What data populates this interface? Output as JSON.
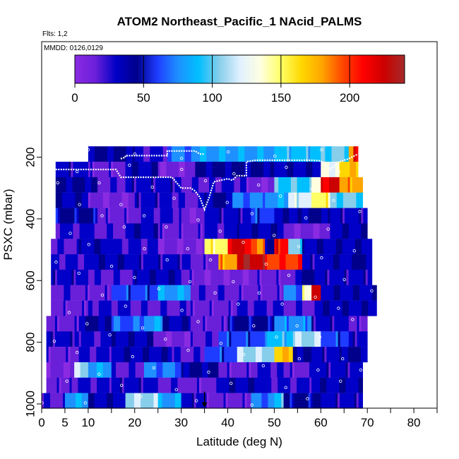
{
  "chart_data": {
    "type": "heatmap",
    "title": "ATOM2 Northeast_Pacific_1 NAcid_PALMS",
    "flights_label": "Flts: 1,2",
    "dates_label": "MMDD: 0126,0129",
    "xlabel": "Latitude (deg N)",
    "ylabel": "PSXC (mbar)",
    "xlim": [
      0,
      85
    ],
    "ylim": [
      1000,
      130
    ],
    "y_reversed": true,
    "x_ticks": [
      0,
      5,
      10,
      20,
      30,
      40,
      50,
      60,
      70,
      80
    ],
    "x_minor_ticks": [
      15,
      25,
      35,
      45,
      55,
      65,
      75,
      85
    ],
    "y_ticks": [
      200,
      400,
      600,
      800,
      1000
    ],
    "grid": false,
    "colorbar": {
      "range": [
        0,
        240
      ],
      "ticks": [
        0,
        50,
        100,
        150,
        200
      ],
      "colors": [
        "#8a2be2",
        "#6a1fd8",
        "#0000c8",
        "#00008b",
        "#1e3cff",
        "#1e90ff",
        "#00bfff",
        "#87ceeb",
        "#e0f0ff",
        "#ffffe0",
        "#ffff66",
        "#ffd700",
        "#ffa500",
        "#ff4500",
        "#ff0000",
        "#cc0000",
        "#a52a2a"
      ],
      "placement": "top-inside"
    },
    "bands": [
      {
        "p": 190,
        "xmin": 10,
        "xmax": 68,
        "segs": [
          [
            10,
            20,
            40
          ],
          [
            20,
            27,
            25
          ],
          [
            27,
            34,
            70
          ],
          [
            34,
            50,
            80
          ],
          [
            50,
            60,
            90
          ],
          [
            60,
            66,
            100
          ],
          [
            66,
            67,
            180
          ],
          [
            67,
            68,
            220
          ]
        ]
      },
      {
        "p": 240,
        "xmin": 3,
        "xmax": 68,
        "segs": [
          [
            3,
            10,
            30
          ],
          [
            10,
            18,
            15
          ],
          [
            18,
            25,
            35
          ],
          [
            25,
            33,
            10
          ],
          [
            33,
            50,
            40
          ],
          [
            50,
            60,
            35
          ],
          [
            60,
            64,
            130
          ],
          [
            64,
            68,
            170
          ]
        ]
      },
      {
        "p": 290,
        "xmin": 3,
        "xmax": 69,
        "segs": [
          [
            3,
            12,
            40
          ],
          [
            12,
            18,
            20
          ],
          [
            18,
            30,
            30
          ],
          [
            30,
            36,
            20
          ],
          [
            36,
            44,
            25
          ],
          [
            44,
            50,
            10
          ],
          [
            50,
            58,
            95
          ],
          [
            58,
            60,
            135
          ],
          [
            60,
            64,
            220
          ],
          [
            64,
            69,
            180
          ]
        ]
      },
      {
        "p": 340,
        "xmin": 3,
        "xmax": 69,
        "segs": [
          [
            3,
            10,
            35
          ],
          [
            10,
            20,
            10
          ],
          [
            20,
            28,
            30
          ],
          [
            28,
            35,
            20
          ],
          [
            35,
            41,
            40
          ],
          [
            41,
            48,
            70
          ],
          [
            48,
            53,
            80
          ],
          [
            53,
            58,
            120
          ],
          [
            58,
            62,
            150
          ],
          [
            62,
            69,
            100
          ]
        ]
      },
      {
        "p": 390,
        "xmin": 3,
        "xmax": 70,
        "segs": [
          [
            3,
            12,
            45
          ],
          [
            12,
            20,
            15
          ],
          [
            20,
            30,
            25
          ],
          [
            30,
            35,
            10
          ],
          [
            35,
            45,
            30
          ],
          [
            45,
            50,
            60
          ],
          [
            50,
            55,
            35
          ],
          [
            55,
            62,
            40
          ],
          [
            62,
            70,
            30
          ]
        ]
      },
      {
        "p": 440,
        "xmin": 3,
        "xmax": 70,
        "segs": [
          [
            3,
            10,
            25
          ],
          [
            10,
            18,
            20
          ],
          [
            18,
            25,
            35
          ],
          [
            25,
            35,
            15
          ],
          [
            35,
            42,
            25
          ],
          [
            42,
            52,
            35
          ],
          [
            52,
            62,
            10
          ],
          [
            62,
            70,
            35
          ]
        ]
      },
      {
        "p": 490,
        "xmin": 2,
        "xmax": 71,
        "segs": [
          [
            2,
            8,
            20
          ],
          [
            8,
            15,
            35
          ],
          [
            15,
            25,
            25
          ],
          [
            25,
            35,
            10
          ],
          [
            35,
            40,
            150
          ],
          [
            40,
            45,
            220
          ],
          [
            45,
            48,
            190
          ],
          [
            48,
            50,
            40
          ],
          [
            50,
            53,
            210
          ],
          [
            53,
            56,
            100
          ],
          [
            56,
            71,
            35
          ]
        ]
      },
      {
        "p": 540,
        "xmin": 2,
        "xmax": 71,
        "segs": [
          [
            2,
            10,
            25
          ],
          [
            10,
            20,
            35
          ],
          [
            20,
            32,
            30
          ],
          [
            32,
            38,
            15
          ],
          [
            38,
            42,
            180
          ],
          [
            42,
            48,
            230
          ],
          [
            48,
            56,
            200
          ],
          [
            56,
            60,
            30
          ],
          [
            60,
            68,
            35
          ],
          [
            68,
            71,
            40
          ]
        ]
      },
      {
        "p": 590,
        "xmin": 2,
        "xmax": 71,
        "segs": [
          [
            2,
            10,
            30
          ],
          [
            10,
            20,
            20
          ],
          [
            20,
            30,
            35
          ],
          [
            30,
            35,
            15
          ],
          [
            35,
            45,
            10
          ],
          [
            45,
            55,
            15
          ],
          [
            55,
            60,
            40
          ],
          [
            60,
            71,
            30
          ]
        ]
      },
      {
        "p": 640,
        "xmin": 2,
        "xmax": 72,
        "segs": [
          [
            2,
            8,
            20
          ],
          [
            8,
            15,
            15
          ],
          [
            15,
            25,
            60
          ],
          [
            25,
            32,
            80
          ],
          [
            32,
            42,
            20
          ],
          [
            42,
            52,
            15
          ],
          [
            52,
            56,
            70
          ],
          [
            56,
            58,
            140
          ],
          [
            58,
            60,
            220
          ],
          [
            60,
            72,
            35
          ]
        ]
      },
      {
        "p": 690,
        "xmin": 2,
        "xmax": 72,
        "segs": [
          [
            2,
            10,
            15
          ],
          [
            10,
            20,
            25
          ],
          [
            20,
            32,
            20
          ],
          [
            32,
            42,
            15
          ],
          [
            42,
            52,
            25
          ],
          [
            52,
            60,
            20
          ],
          [
            60,
            72,
            35
          ]
        ]
      },
      {
        "p": 740,
        "xmin": 1,
        "xmax": 70,
        "segs": [
          [
            1,
            8,
            15
          ],
          [
            8,
            15,
            40
          ],
          [
            15,
            22,
            65
          ],
          [
            22,
            26,
            80
          ],
          [
            26,
            32,
            35
          ],
          [
            32,
            40,
            15
          ],
          [
            40,
            50,
            45
          ],
          [
            50,
            58,
            75
          ],
          [
            58,
            66,
            30
          ],
          [
            66,
            70,
            15
          ]
        ]
      },
      {
        "p": 790,
        "xmin": 1,
        "xmax": 70,
        "segs": [
          [
            1,
            8,
            30
          ],
          [
            8,
            15,
            25
          ],
          [
            15,
            24,
            35
          ],
          [
            24,
            32,
            10
          ],
          [
            32,
            38,
            20
          ],
          [
            38,
            48,
            60
          ],
          [
            48,
            54,
            90
          ],
          [
            54,
            60,
            110
          ],
          [
            60,
            66,
            60
          ],
          [
            66,
            70,
            30
          ]
        ]
      },
      {
        "p": 840,
        "xmin": 1,
        "xmax": 70,
        "segs": [
          [
            1,
            8,
            15
          ],
          [
            8,
            15,
            25
          ],
          [
            15,
            28,
            35
          ],
          [
            28,
            35,
            20
          ],
          [
            35,
            42,
            60
          ],
          [
            42,
            50,
            110
          ],
          [
            50,
            54,
            170
          ],
          [
            54,
            58,
            40
          ],
          [
            58,
            64,
            30
          ],
          [
            64,
            70,
            40
          ]
        ]
      },
      {
        "p": 890,
        "xmin": 1,
        "xmax": 69,
        "segs": [
          [
            1,
            7,
            10
          ],
          [
            7,
            10,
            110
          ],
          [
            10,
            15,
            80
          ],
          [
            15,
            22,
            20
          ],
          [
            22,
            30,
            70
          ],
          [
            30,
            38,
            40
          ],
          [
            38,
            45,
            15
          ],
          [
            45,
            52,
            25
          ],
          [
            52,
            58,
            15
          ],
          [
            58,
            69,
            30
          ]
        ]
      },
      {
        "p": 940,
        "xmin": 1,
        "xmax": 69,
        "segs": [
          [
            1,
            6,
            15
          ],
          [
            6,
            15,
            25
          ],
          [
            15,
            25,
            30
          ],
          [
            25,
            32,
            20
          ],
          [
            32,
            38,
            15
          ],
          [
            38,
            48,
            35
          ],
          [
            48,
            58,
            25
          ],
          [
            58,
            69,
            35
          ]
        ]
      },
      {
        "p": 990,
        "xmin": 0,
        "xmax": 69,
        "segs": [
          [
            0,
            5,
            20
          ],
          [
            5,
            10,
            80
          ],
          [
            10,
            18,
            35
          ],
          [
            18,
            25,
            110
          ],
          [
            25,
            30,
            80
          ],
          [
            30,
            35,
            30
          ],
          [
            35,
            45,
            15
          ],
          [
            45,
            50,
            70
          ],
          [
            50,
            52,
            100
          ],
          [
            52,
            60,
            45
          ],
          [
            60,
            69,
            30
          ]
        ]
      }
    ],
    "flight_track": [
      [
        3,
        240
      ],
      [
        5,
        240
      ],
      [
        10,
        240
      ],
      [
        14,
        240
      ],
      [
        16,
        240
      ],
      [
        17,
        265
      ],
      [
        20,
        265
      ],
      [
        25,
        265
      ],
      [
        28,
        265
      ],
      [
        30,
        300
      ],
      [
        32,
        300
      ],
      [
        33,
        310
      ],
      [
        34,
        330
      ],
      [
        35,
        370
      ],
      [
        36,
        330
      ],
      [
        37,
        280
      ],
      [
        40,
        270
      ],
      [
        41,
        275
      ],
      [
        42,
        260
      ],
      [
        44,
        260
      ],
      [
        44,
        215
      ],
      [
        46,
        210
      ],
      [
        48,
        210
      ],
      [
        50,
        210
      ],
      [
        52,
        210
      ],
      [
        56,
        210
      ],
      [
        58,
        210
      ],
      [
        60,
        212
      ],
      [
        62,
        240
      ],
      [
        64,
        215
      ],
      [
        66,
        205
      ],
      [
        68,
        190
      ]
    ],
    "track_upper": [
      [
        17,
        205
      ],
      [
        18,
        200
      ],
      [
        18,
        195
      ],
      [
        20,
        195
      ],
      [
        22,
        195
      ],
      [
        27,
        195
      ],
      [
        27,
        180
      ],
      [
        30,
        180
      ],
      [
        33,
        180
      ],
      [
        34,
        190
      ],
      [
        35,
        190
      ]
    ],
    "marker_x": 35
  }
}
